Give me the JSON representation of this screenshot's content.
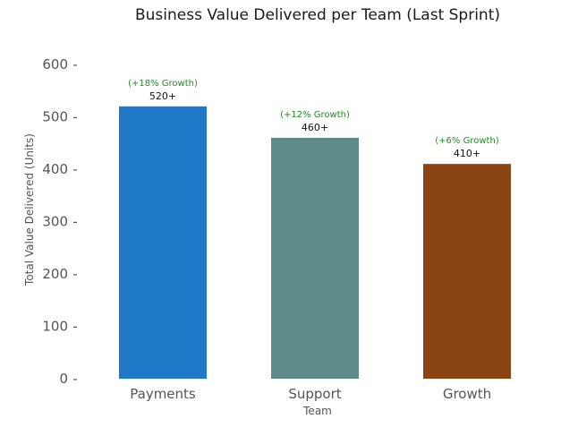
{
  "chart_data": {
    "type": "bar",
    "title": "Business Value Delivered per Team (Last Sprint)",
    "xlabel": "Team",
    "ylabel": "Total Value Delivered (Units)",
    "categories": [
      "Payments",
      "Support",
      "Growth"
    ],
    "values": [
      520,
      460,
      410
    ],
    "value_labels": [
      "520+",
      "460+",
      "410+"
    ],
    "growth_labels": [
      "(+18% Growth)",
      "(+12% Growth)",
      "(+6% Growth)"
    ],
    "colors": [
      "#1f78c8",
      "#5e8a88",
      "#8b4513"
    ],
    "growth_color": "#1e8c1e",
    "ylim": [
      0,
      600
    ],
    "yticks": [
      0,
      100,
      200,
      300,
      400,
      500,
      600
    ],
    "grid": false,
    "legend": "none"
  }
}
